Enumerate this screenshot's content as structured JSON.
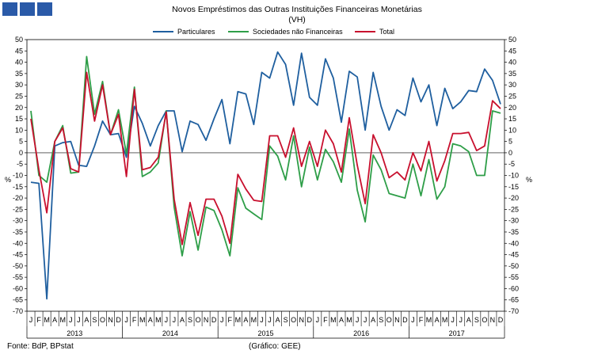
{
  "header": {
    "title": "Novos Empréstimos das Outras Instituições Financeiras Monetárias",
    "subtitle": "(VH)"
  },
  "footer": {
    "source": "Fonte: BdP, BPstat",
    "credit": "(Gráfico: GEE)"
  },
  "chart_data": {
    "type": "line",
    "title": "Novos Empréstimos das Outras Instituições Financeiras Monetárias",
    "subtitle": "(VH)",
    "ylabel_left": "%",
    "ylabel_right": "%",
    "ylim": [
      -70,
      50
    ],
    "ytick_step": 5,
    "legend_position": "top",
    "month_labels": [
      "J",
      "F",
      "M",
      "A",
      "M",
      "J",
      "J",
      "A",
      "S",
      "O",
      "N",
      "D"
    ],
    "years": [
      "2013",
      "2014",
      "2015",
      "2016",
      "2017"
    ],
    "x": [
      "2013-01",
      "2013-02",
      "2013-03",
      "2013-04",
      "2013-05",
      "2013-06",
      "2013-07",
      "2013-08",
      "2013-09",
      "2013-10",
      "2013-11",
      "2013-12",
      "2014-01",
      "2014-02",
      "2014-03",
      "2014-04",
      "2014-05",
      "2014-06",
      "2014-07",
      "2014-08",
      "2014-09",
      "2014-10",
      "2014-11",
      "2014-12",
      "2015-01",
      "2015-02",
      "2015-03",
      "2015-04",
      "2015-05",
      "2015-06",
      "2015-07",
      "2015-08",
      "2015-09",
      "2015-10",
      "2015-11",
      "2015-12",
      "2016-01",
      "2016-02",
      "2016-03",
      "2016-04",
      "2016-05",
      "2016-06",
      "2016-07",
      "2016-08",
      "2016-09",
      "2016-10",
      "2016-11",
      "2016-12",
      "2017-01",
      "2017-02",
      "2017-03",
      "2017-04",
      "2017-05",
      "2017-06",
      "2017-07",
      "2017-08",
      "2017-09",
      "2017-10",
      "2017-11",
      "2017-12"
    ],
    "series": [
      {
        "name": "Particulares",
        "color": "#1f5f9f",
        "values": [
          -13,
          -13.5,
          -64.5,
          3,
          4.5,
          5,
          -5.5,
          -6,
          3,
          14,
          8,
          8.5,
          -2,
          20.5,
          13,
          3,
          12,
          18.5,
          18.5,
          0.5,
          14,
          12.5,
          5.5,
          15,
          23.5,
          4,
          27,
          26,
          12.5,
          35.5,
          33,
          44.5,
          39,
          21,
          44,
          24.5,
          21,
          41.5,
          33,
          13.5,
          36,
          33.5,
          10,
          35.5,
          20.5,
          10,
          19,
          16.5,
          33,
          22.5,
          30,
          12,
          28.5,
          19.5,
          22.5,
          27.5,
          27,
          37,
          32,
          21.5
        ]
      },
      {
        "name": "Sociedades não Financeiras",
        "color": "#2e9e48",
        "values": [
          18.5,
          -10,
          -13,
          5,
          12,
          -9,
          -8.5,
          42.5,
          17,
          31.5,
          8,
          19,
          -0.5,
          29,
          -10.5,
          -8.5,
          -4.5,
          18.5,
          -24,
          -45.5,
          -26,
          -43,
          -24,
          -25.5,
          -34,
          -45.5,
          -15.5,
          -24.5,
          -27,
          -29.5,
          3,
          -1.5,
          -12,
          7.5,
          -15,
          2.5,
          -12,
          1.5,
          -4,
          -13,
          10.5,
          -16.5,
          -30.5,
          -1,
          -7.5,
          -18,
          -19,
          -20,
          -5,
          -19,
          -3,
          -20.5,
          -15,
          4,
          3,
          0.5,
          -10,
          -10,
          18.5,
          17.5
        ]
      },
      {
        "name": "Total",
        "color": "#c8102e",
        "values": [
          15,
          -7.5,
          -26.5,
          5,
          11,
          -7,
          -8.5,
          35.5,
          14,
          30,
          8,
          17,
          -10.5,
          28,
          -7.5,
          -6.5,
          -2,
          18,
          -20.5,
          -40.5,
          -22,
          -36.5,
          -20.5,
          -20.5,
          -28,
          -40,
          -9.5,
          -16,
          -21,
          -21.5,
          7.5,
          7.5,
          -2,
          11,
          -6,
          5,
          -6,
          10,
          4,
          -8.5,
          15.5,
          -5.5,
          -22.5,
          8,
          0,
          -11,
          -8.5,
          -12,
          0,
          -8,
          5,
          -12.5,
          -3.5,
          8.5,
          8.5,
          9,
          1,
          3,
          23,
          19.5
        ]
      }
    ]
  }
}
